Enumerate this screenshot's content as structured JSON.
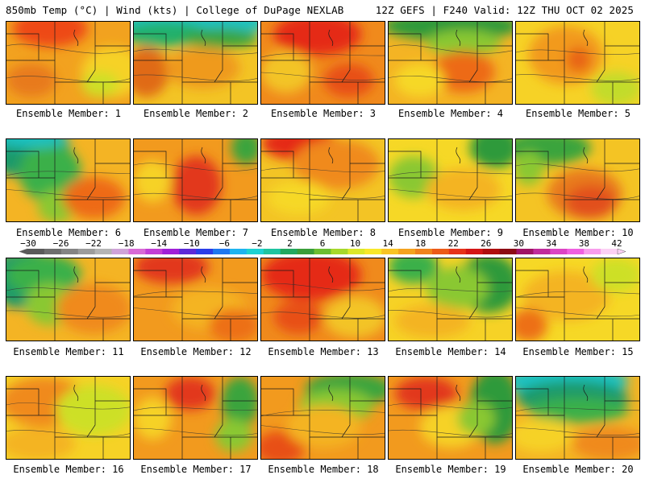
{
  "header": {
    "left": "850mb Temp (°C) | Wind (kts) | College of DuPage NEXLAB",
    "right": "12Z GEFS | F240 Valid: 12Z THU OCT 02 2025"
  },
  "members": [
    {
      "label": "Ensemble Member: 1",
      "base": "#f2a21f",
      "blobs": [
        [
          "#ee4a14",
          0.35,
          0.08,
          0.3,
          0.22
        ],
        [
          "#f6d226",
          0.85,
          0.6,
          0.25,
          0.3
        ],
        [
          "#cde028",
          0.75,
          0.75,
          0.15,
          0.15
        ],
        [
          "#e87a1a",
          0.2,
          0.7,
          0.2,
          0.2
        ]
      ]
    },
    {
      "label": "Ensemble Member: 2",
      "base": "#f3c425",
      "blobs": [
        [
          "#1dc2c2",
          0.5,
          0.0,
          0.6,
          0.18
        ],
        [
          "#22b06a",
          0.25,
          0.15,
          0.35,
          0.15
        ],
        [
          "#3aa43c",
          0.7,
          0.2,
          0.3,
          0.12
        ],
        [
          "#e06a18",
          0.1,
          0.6,
          0.18,
          0.3
        ],
        [
          "#ef9a1d",
          0.55,
          0.55,
          0.3,
          0.25
        ]
      ]
    },
    {
      "label": "Ensemble Member: 3",
      "base": "#f08a1c",
      "blobs": [
        [
          "#e52a12",
          0.45,
          0.15,
          0.35,
          0.25
        ],
        [
          "#f3c425",
          0.2,
          0.6,
          0.2,
          0.25
        ],
        [
          "#e85016",
          0.7,
          0.7,
          0.2,
          0.2
        ]
      ]
    },
    {
      "label": "Ensemble Member: 4",
      "base": "#f4b424",
      "blobs": [
        [
          "#2e9a3a",
          0.5,
          0.05,
          0.55,
          0.18
        ],
        [
          "#8ac832",
          0.6,
          0.25,
          0.3,
          0.15
        ],
        [
          "#ed6a18",
          0.6,
          0.6,
          0.25,
          0.25
        ],
        [
          "#f6d826",
          0.25,
          0.7,
          0.2,
          0.2
        ]
      ]
    },
    {
      "label": "Ensemble Member: 5",
      "base": "#f6d226",
      "blobs": [
        [
          "#f29a1e",
          0.4,
          0.4,
          0.3,
          0.35
        ],
        [
          "#e86418",
          0.5,
          0.45,
          0.1,
          0.15
        ],
        [
          "#c2dc2a",
          0.8,
          0.8,
          0.2,
          0.2
        ]
      ]
    },
    {
      "label": "Ensemble Member: 6",
      "base": "#f4b424",
      "blobs": [
        [
          "#1c9a6a",
          0.15,
          0.1,
          0.35,
          0.35
        ],
        [
          "#3ab04a",
          0.35,
          0.4,
          0.25,
          0.35
        ],
        [
          "#1cc2c2",
          0.2,
          0.0,
          0.3,
          0.1
        ],
        [
          "#8ac832",
          0.4,
          0.8,
          0.15,
          0.2
        ],
        [
          "#ee6a18",
          0.7,
          0.7,
          0.25,
          0.25
        ]
      ]
    },
    {
      "label": "Ensemble Member: 7",
      "base": "#f29a1e",
      "blobs": [
        [
          "#e2381a",
          0.5,
          0.55,
          0.2,
          0.35
        ],
        [
          "#3aa43c",
          0.9,
          0.1,
          0.12,
          0.2
        ],
        [
          "#f6d226",
          0.15,
          0.5,
          0.15,
          0.25
        ]
      ]
    },
    {
      "label": "Ensemble Member: 8",
      "base": "#f3c425",
      "blobs": [
        [
          "#e52a12",
          0.3,
          0.05,
          0.3,
          0.2
        ],
        [
          "#f08a1c",
          0.6,
          0.3,
          0.35,
          0.3
        ],
        [
          "#f6d826",
          0.3,
          0.7,
          0.25,
          0.2
        ]
      ]
    },
    {
      "label": "Ensemble Member: 9",
      "base": "#f6d826",
      "blobs": [
        [
          "#2e9a3a",
          0.85,
          0.1,
          0.2,
          0.25
        ],
        [
          "#8ac832",
          0.2,
          0.45,
          0.2,
          0.25
        ],
        [
          "#f4b424",
          0.6,
          0.6,
          0.3,
          0.25
        ]
      ]
    },
    {
      "label": "Ensemble Member: 10",
      "base": "#f4c424",
      "blobs": [
        [
          "#3aa43c",
          0.25,
          0.1,
          0.35,
          0.2
        ],
        [
          "#e87a1a",
          0.55,
          0.65,
          0.3,
          0.3
        ],
        [
          "#e2501a",
          0.6,
          0.75,
          0.2,
          0.2
        ],
        [
          "#8ac832",
          0.1,
          0.35,
          0.12,
          0.2
        ]
      ]
    },
    {
      "label": "Ensemble Member: 11",
      "base": "#f4b424",
      "blobs": [
        [
          "#1c9a6a",
          0.15,
          0.25,
          0.3,
          0.35
        ],
        [
          "#3ab04a",
          0.3,
          0.2,
          0.3,
          0.25
        ],
        [
          "#8ac832",
          0.35,
          0.55,
          0.2,
          0.25
        ],
        [
          "#f08a1c",
          0.7,
          0.6,
          0.3,
          0.3
        ]
      ]
    },
    {
      "label": "Ensemble Member: 12",
      "base": "#f29a1e",
      "blobs": [
        [
          "#e2381a",
          0.3,
          0.1,
          0.3,
          0.2
        ],
        [
          "#f4b424",
          0.6,
          0.6,
          0.3,
          0.25
        ],
        [
          "#ed7018",
          0.8,
          0.8,
          0.2,
          0.2
        ]
      ]
    },
    {
      "label": "Ensemble Member: 13",
      "base": "#f08a1c",
      "blobs": [
        [
          "#e52a12",
          0.4,
          0.2,
          0.4,
          0.3
        ],
        [
          "#f3c425",
          0.75,
          0.7,
          0.25,
          0.25
        ],
        [
          "#e85016",
          0.3,
          0.7,
          0.2,
          0.2
        ]
      ]
    },
    {
      "label": "Ensemble Member: 14",
      "base": "#f6d226",
      "blobs": [
        [
          "#2e9a3a",
          0.8,
          0.3,
          0.25,
          0.35
        ],
        [
          "#3ab04a",
          0.2,
          0.1,
          0.2,
          0.2
        ],
        [
          "#8ac832",
          0.55,
          0.35,
          0.25,
          0.25
        ],
        [
          "#f4b424",
          0.35,
          0.75,
          0.3,
          0.2
        ]
      ]
    },
    {
      "label": "Ensemble Member: 15",
      "base": "#f6d826",
      "blobs": [
        [
          "#f4b424",
          0.4,
          0.45,
          0.35,
          0.3
        ],
        [
          "#ed7018",
          0.1,
          0.8,
          0.15,
          0.2
        ],
        [
          "#cde028",
          0.8,
          0.2,
          0.2,
          0.2
        ]
      ]
    },
    {
      "label": "Ensemble Member: 16",
      "base": "#f6d226",
      "blobs": [
        [
          "#f08a1c",
          0.3,
          0.3,
          0.35,
          0.3
        ],
        [
          "#cde028",
          0.7,
          0.4,
          0.3,
          0.3
        ],
        [
          "#f4b424",
          0.25,
          0.8,
          0.3,
          0.2
        ]
      ]
    },
    {
      "label": "Ensemble Member: 17",
      "base": "#f29a1e",
      "blobs": [
        [
          "#e2381a",
          0.45,
          0.2,
          0.2,
          0.2
        ],
        [
          "#3aa43c",
          0.85,
          0.3,
          0.15,
          0.3
        ],
        [
          "#8ac832",
          0.8,
          0.7,
          0.15,
          0.2
        ],
        [
          "#f6d226",
          0.15,
          0.5,
          0.15,
          0.25
        ]
      ]
    },
    {
      "label": "Ensemble Member: 18",
      "base": "#f29a1e",
      "blobs": [
        [
          "#3aa43c",
          0.7,
          0.15,
          0.35,
          0.2
        ],
        [
          "#8ac832",
          0.6,
          0.35,
          0.3,
          0.2
        ],
        [
          "#e85016",
          0.15,
          0.85,
          0.2,
          0.2
        ],
        [
          "#f4b424",
          0.5,
          0.6,
          0.3,
          0.25
        ]
      ]
    },
    {
      "label": "Ensemble Member: 19",
      "base": "#f29a1e",
      "blobs": [
        [
          "#2e9a3a",
          0.85,
          0.35,
          0.2,
          0.45
        ],
        [
          "#e2381a",
          0.3,
          0.2,
          0.25,
          0.2
        ],
        [
          "#f6d226",
          0.5,
          0.6,
          0.25,
          0.25
        ],
        [
          "#8ac832",
          0.7,
          0.5,
          0.15,
          0.2
        ]
      ]
    },
    {
      "label": "Ensemble Member: 20",
      "base": "#f4b424",
      "blobs": [
        [
          "#1cc2c2",
          0.4,
          0.05,
          0.5,
          0.2
        ],
        [
          "#1c9a6a",
          0.45,
          0.25,
          0.45,
          0.2
        ],
        [
          "#3ab04a",
          0.5,
          0.4,
          0.4,
          0.15
        ],
        [
          "#f6d226",
          0.2,
          0.7,
          0.25,
          0.2
        ],
        [
          "#f08a1c",
          0.75,
          0.8,
          0.3,
          0.2
        ]
      ]
    }
  ],
  "colorbar": {
    "ticks": [
      "−30",
      "−26",
      "−22",
      "−18",
      "−14",
      "−10",
      "−6",
      "−2",
      "2",
      "6",
      "10",
      "14",
      "18",
      "22",
      "26",
      "30",
      "34",
      "38",
      "42"
    ],
    "colors": [
      "#5a5a5a",
      "#6e6e6e",
      "#848484",
      "#9c9c9c",
      "#b4b4b4",
      "#cfa3d8",
      "#d86ad6",
      "#c23ed6",
      "#a020d8",
      "#5c2ad8",
      "#2a3ee8",
      "#1e78f0",
      "#1eb4f0",
      "#1ed2d2",
      "#1ec4a0",
      "#22a860",
      "#3a9e3a",
      "#6cbe32",
      "#a6d82c",
      "#dce82a",
      "#f8e82a",
      "#f8c424",
      "#f4a21e",
      "#f0821c",
      "#ec5a18",
      "#e6321a",
      "#d41616",
      "#b00e0e",
      "#8c0a14",
      "#a01466",
      "#c02c9c",
      "#dc44c4",
      "#f060e0",
      "#f89cec",
      "#fcd0f4"
    ]
  }
}
